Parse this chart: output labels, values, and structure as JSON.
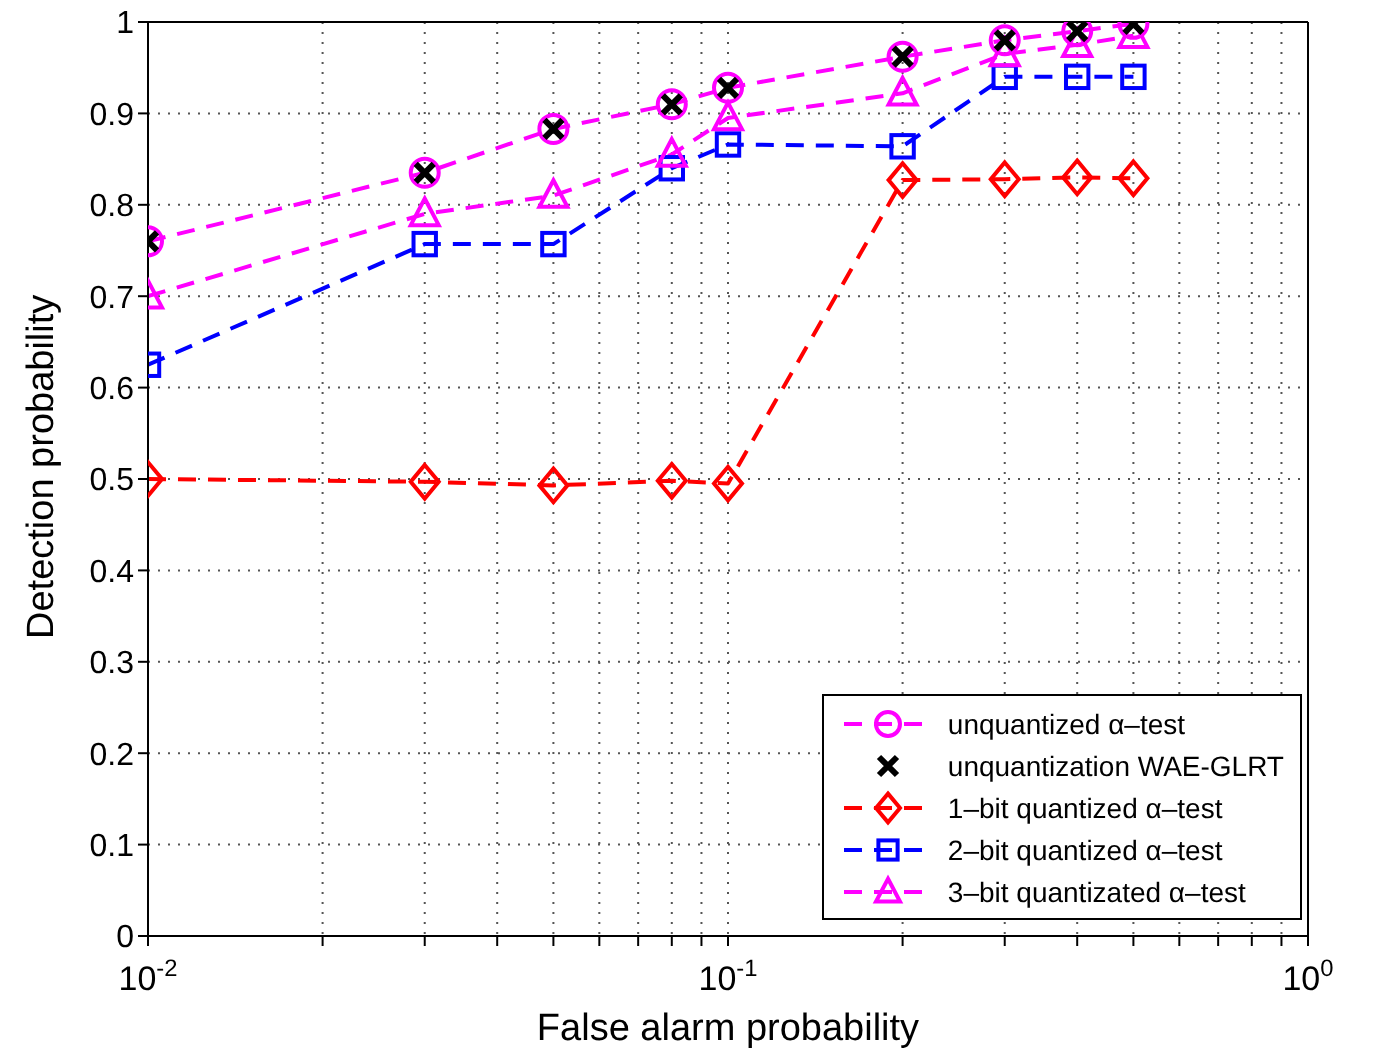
{
  "chart_data": {
    "type": "line",
    "xlabel": "False alarm probability",
    "ylabel": "Detection probability",
    "x": [
      0.01,
      0.03,
      0.05,
      0.08,
      0.1,
      0.2,
      0.3,
      0.4,
      0.5
    ],
    "series": [
      {
        "name": "unquantized α–test",
        "color": "#ff00ff",
        "marker": "circle",
        "line_style": "dashed",
        "values": [
          0.76,
          0.835,
          0.883,
          0.91,
          0.928,
          0.962,
          0.98,
          0.99,
          0.998
        ]
      },
      {
        "name": "unquantization WAE-GLRT",
        "type": "scatter",
        "color": "#000000",
        "marker": "cross",
        "values": [
          0.76,
          0.835,
          0.883,
          0.91,
          0.928,
          0.962,
          0.98,
          0.99,
          0.998
        ]
      },
      {
        "name": "1–bit quantized α–test",
        "color": "#ff0000",
        "marker": "diamond",
        "line_style": "dashed",
        "values": [
          0.5,
          0.497,
          0.493,
          0.498,
          0.495,
          0.827,
          0.828,
          0.83,
          0.829
        ]
      },
      {
        "name": "2–bit quantized α–test",
        "color": "#0000ff",
        "marker": "square",
        "line_style": "dashed",
        "values": [
          0.625,
          0.757,
          0.757,
          0.84,
          0.866,
          0.864,
          0.94,
          0.94,
          0.94
        ]
      },
      {
        "name": "3–bit quantizated α–test",
        "color": "#ff00ff",
        "marker": "triangle",
        "line_style": "dashed",
        "values": [
          0.7,
          0.79,
          0.81,
          0.855,
          0.895,
          0.922,
          0.965,
          0.975,
          0.985
        ]
      }
    ],
    "log": "x",
    "xlim": [
      0.01,
      1
    ],
    "xticks": [
      {
        "value": 0.01,
        "label": "10$^{-2}$"
      },
      {
        "value": 0.02,
        "label": null
      },
      {
        "value": 0.03,
        "label": null
      },
      {
        "value": 0.04,
        "label": null
      },
      {
        "value": 0.05,
        "label": null
      },
      {
        "value": 0.06,
        "label": null
      },
      {
        "value": 0.07,
        "label": null
      },
      {
        "value": 0.08,
        "label": null
      },
      {
        "value": 0.09,
        "label": null
      },
      {
        "value": 0.1,
        "label": "10$^{-1}$"
      },
      {
        "value": 0.2,
        "label": null
      },
      {
        "value": 0.3,
        "label": null
      },
      {
        "value": 0.4,
        "label": null
      },
      {
        "value": 0.5,
        "label": null
      },
      {
        "value": 0.6,
        "label": null
      },
      {
        "value": 0.7,
        "label": null
      },
      {
        "value": 0.8,
        "label": null
      },
      {
        "value": 0.9,
        "label": null
      },
      {
        "value": 1,
        "label": "10$^{0}$"
      }
    ],
    "ylim": [
      0,
      1
    ],
    "yticks": [
      0,
      0.1,
      0.2,
      0.3,
      0.4,
      0.5,
      0.6,
      0.7,
      0.8,
      0.9,
      1
    ],
    "grid": true,
    "legend": "bottom right"
  }
}
